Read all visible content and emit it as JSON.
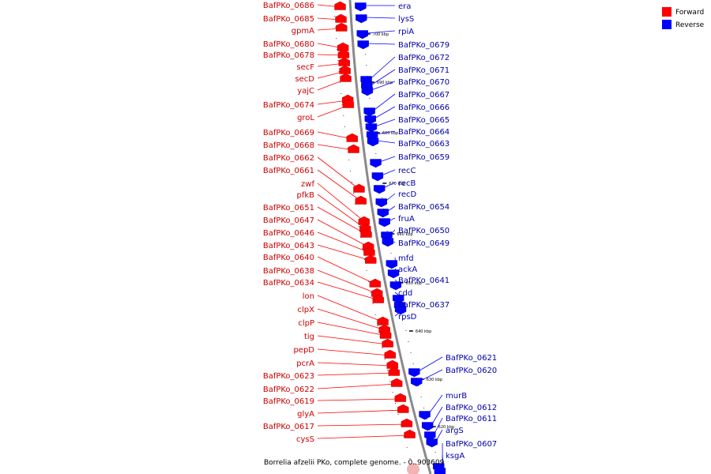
{
  "legend": {
    "forward": {
      "label": "Forward",
      "color": "#ff0000"
    },
    "reverse": {
      "label": "Reverse",
      "color": "#0000ff"
    }
  },
  "caption": "Borrelia afzelii PKo, complete genome. - 0..903609",
  "ticks": [
    "700 kbp",
    "690 kbp",
    "680 kbp",
    "670 kbp",
    "660 kbp",
    "650 kbp",
    "640 kbp",
    "630 kbp",
    "620 kbp"
  ],
  "forward_genes": [
    "BafPKo_0686",
    "BafPKo_0685",
    "gpmA",
    "BafPKo_0680",
    "BafPKo_0678",
    "secF",
    "secD",
    "yajC",
    "BafPKo_0674",
    "groL",
    "BafPKo_0669",
    "BafPKo_0668",
    "BafPKo_0662",
    "BafPKo_0661",
    "zwf",
    "pfkB",
    "BafPKo_0651",
    "BafPKo_0647",
    "BafPKo_0646",
    "BafPKo_0643",
    "BafPKo_0640",
    "BafPKo_0638",
    "BafPKo_0634",
    "lon",
    "clpX",
    "clpP",
    "tig",
    "pepD",
    "pcrA",
    "BafPKo_0623",
    "BafPKo_0622",
    "BafPKo_0619",
    "glyA",
    "BafPKo_0617",
    "cysS"
  ],
  "reverse_genes": [
    "era",
    "lysS",
    "rpiA",
    "BafPKo_0679",
    "BafPKo_0672",
    "BafPKo_0671",
    "BafPKo_0670",
    "BafPKo_0667",
    "BafPKo_0666",
    "BafPKo_0665",
    "BafPKo_0664",
    "BafPKo_0663",
    "BafPKo_0659",
    "recC",
    "recB",
    "recD",
    "BafPKo_0654",
    "fruA",
    "BafPKo_0650",
    "BafPKo_0649",
    "mfd",
    "ackA",
    "BafPKo_0641",
    "cdd",
    "BafPKo_0637",
    "rpsD",
    "BafPKo_0621",
    "BafPKo_0620",
    "murB",
    "BafPKo_0612",
    "BafPKo_0611",
    "argS",
    "BafPKo_0607",
    "ksgA"
  ]
}
